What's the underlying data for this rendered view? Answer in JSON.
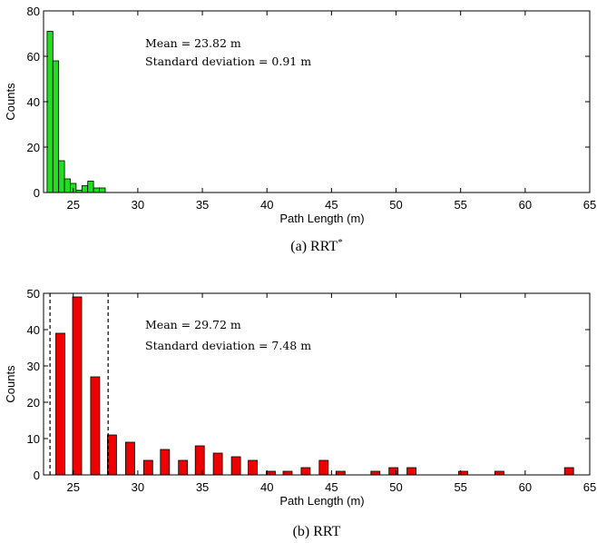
{
  "chart_data": [
    {
      "type": "bar",
      "caption_label": "(a)",
      "caption_name": "RRT",
      "caption_sup": "*",
      "xlabel": "Path Length (m)",
      "ylabel": "Counts",
      "xlim": [
        22.7,
        65
      ],
      "ylim": [
        0,
        80
      ],
      "xticks": [
        25,
        30,
        35,
        40,
        45,
        50,
        55,
        60,
        65
      ],
      "yticks": [
        0,
        20,
        40,
        60,
        80
      ],
      "bar_width": 0.45,
      "color": "#22dd22",
      "grid": false,
      "annotations": [
        "Mean = 23.82 m",
        "Standard deviation = 0.91 m"
      ],
      "bars": [
        {
          "x": 23.2,
          "y": 71
        },
        {
          "x": 23.65,
          "y": 58
        },
        {
          "x": 24.1,
          "y": 14
        },
        {
          "x": 24.55,
          "y": 6
        },
        {
          "x": 25.0,
          "y": 4
        },
        {
          "x": 25.45,
          "y": 1
        },
        {
          "x": 25.9,
          "y": 3
        },
        {
          "x": 26.35,
          "y": 5
        },
        {
          "x": 26.8,
          "y": 2
        },
        {
          "x": 27.25,
          "y": 2
        }
      ],
      "dashed_lines": []
    },
    {
      "type": "bar",
      "caption_label": "(b)",
      "caption_name": "RRT",
      "caption_sup": "",
      "xlabel": "Path Length (m)",
      "ylabel": "Counts",
      "xlim": [
        22.7,
        65
      ],
      "ylim": [
        0,
        50
      ],
      "xticks": [
        25,
        30,
        35,
        40,
        45,
        50,
        55,
        60,
        65
      ],
      "yticks": [
        0,
        10,
        20,
        30,
        40,
        50
      ],
      "bar_width": 0.7,
      "color": "#ee0000",
      "grid": false,
      "annotations": [
        "Mean = 29.72 m",
        "Standard deviation = 7.48 m"
      ],
      "bars": [
        {
          "x": 24.0,
          "y": 39
        },
        {
          "x": 25.3,
          "y": 49
        },
        {
          "x": 26.7,
          "y": 27
        },
        {
          "x": 28.0,
          "y": 11
        },
        {
          "x": 29.4,
          "y": 9
        },
        {
          "x": 30.8,
          "y": 4
        },
        {
          "x": 32.1,
          "y": 7
        },
        {
          "x": 33.5,
          "y": 4
        },
        {
          "x": 34.8,
          "y": 8
        },
        {
          "x": 36.2,
          "y": 6
        },
        {
          "x": 37.6,
          "y": 5
        },
        {
          "x": 38.9,
          "y": 4
        },
        {
          "x": 40.3,
          "y": 1
        },
        {
          "x": 41.6,
          "y": 1
        },
        {
          "x": 43.0,
          "y": 2
        },
        {
          "x": 44.4,
          "y": 4
        },
        {
          "x": 45.7,
          "y": 1
        },
        {
          "x": 47.1,
          "y": 0
        },
        {
          "x": 48.4,
          "y": 1
        },
        {
          "x": 49.8,
          "y": 2
        },
        {
          "x": 51.2,
          "y": 2
        },
        {
          "x": 52.5,
          "y": 0
        },
        {
          "x": 53.9,
          "y": 0
        },
        {
          "x": 55.2,
          "y": 1
        },
        {
          "x": 56.6,
          "y": 0
        },
        {
          "x": 58.0,
          "y": 1
        },
        {
          "x": 59.3,
          "y": 0
        },
        {
          "x": 60.7,
          "y": 0
        },
        {
          "x": 62.0,
          "y": 0
        },
        {
          "x": 63.4,
          "y": 2
        }
      ],
      "dashed_lines": [
        23.2,
        27.7
      ]
    }
  ]
}
